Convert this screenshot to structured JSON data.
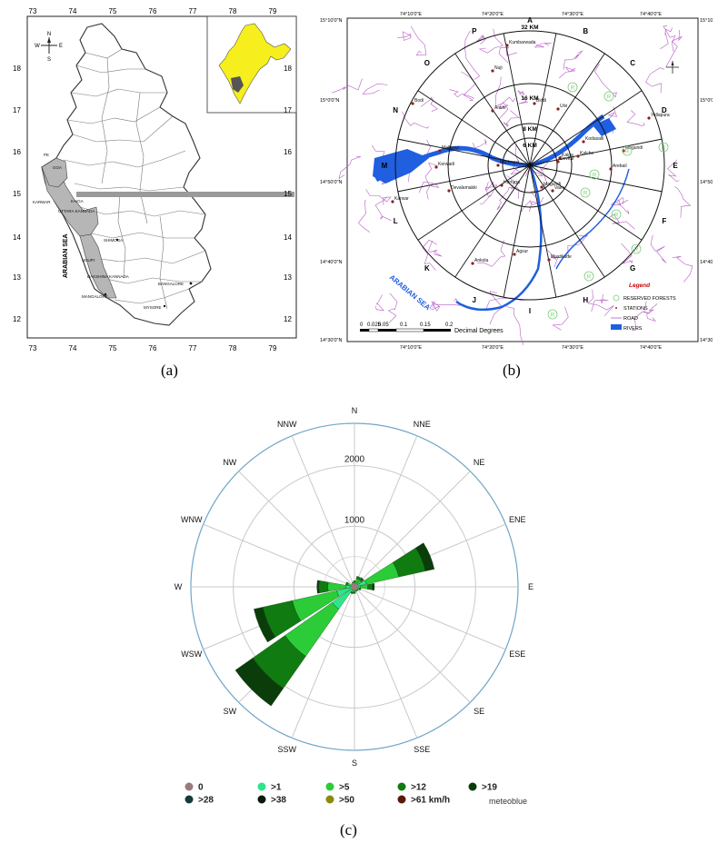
{
  "panel_a": {
    "caption": "(a)",
    "top_ticks": [
      "73",
      "74",
      "75",
      "76",
      "77",
      "78",
      "79"
    ],
    "bottom_ticks": [
      "73",
      "74",
      "75",
      "76",
      "77",
      "78",
      "79"
    ],
    "left_ticks": [
      "18",
      "17",
      "16",
      "15",
      "14",
      "13",
      "12"
    ],
    "right_ticks": [
      "18",
      "17",
      "16",
      "15",
      "14",
      "13",
      "12"
    ],
    "compass": {
      "n": "N",
      "s": "S",
      "e": "E",
      "w": "W"
    },
    "sea_label": "ARABIAN SEA",
    "places": [
      {
        "id": "goa",
        "label": "GOA"
      },
      {
        "id": "karwar",
        "label": "KARWAR"
      },
      {
        "id": "kaiga",
        "label": "KAIGA"
      },
      {
        "id": "uttara-kannada",
        "label": "UTTARA KANNADA"
      },
      {
        "id": "shimoga",
        "label": "SHIMOGA"
      },
      {
        "id": "udupi",
        "label": "UDUPI"
      },
      {
        "id": "dakshina-kannada",
        "label": "DAKSHINA KANNADA"
      },
      {
        "id": "bangalore",
        "label": "BANGALORE"
      },
      {
        "id": "mangalore",
        "label": "MANGALORE"
      },
      {
        "id": "mysore",
        "label": "MYSORE"
      },
      {
        "id": "pe",
        "label": "PE"
      }
    ],
    "colors": {
      "india": "#f6ee1d",
      "highlight": "#b6b6b6"
    }
  },
  "panel_b": {
    "caption": "(b)",
    "top_ticks": [
      "74°10'0\"E",
      "74°20'0\"E",
      "74°30'0\"E",
      "74°40'0\"E"
    ],
    "bottom_ticks": [
      "74°10'0\"E",
      "74°20'0\"E",
      "74°30'0\"E",
      "74°40'0\"E"
    ],
    "left_ticks": [
      "15°10'0\"N",
      "15°0'0\"N",
      "14°50'0\"N",
      "14°40'0\"N",
      "14°30'0\"N"
    ],
    "right_ticks": [
      "15°10'0\"N",
      "15°0'0\"N",
      "14°50'0\"N",
      "14°40'0\"N",
      "14°30'0\"N"
    ],
    "ring_labels": [
      "32 KM",
      "16 KM",
      "8 KM",
      "6 KM"
    ],
    "sectors": [
      "A",
      "B",
      "C",
      "D",
      "E",
      "F",
      "G",
      "H",
      "I",
      "J",
      "K",
      "L",
      "M",
      "N",
      "O",
      "P"
    ],
    "stations": [
      "Kumbarwada",
      "Nuji",
      "Bodi",
      "Anshi",
      "Biddi",
      "Ulvi",
      "Yellapura",
      "Kodasalli",
      "Kaiga",
      "Mallapur",
      "Kerwadi",
      "Kuchegar",
      "Devkar",
      "Kalche",
      "Magundi",
      "Arebail",
      "Karwar",
      "Devalamakki",
      "Hartuga",
      "Idagundi",
      "Vaire",
      "Agsur",
      "Mastikatte",
      "Ankola"
    ],
    "sea_label": "ARABIAN SEA",
    "scale_numbers": [
      "0",
      "0.025",
      "0.05",
      "0.1",
      "0.15",
      "0.2"
    ],
    "scale_unit": "Decimal Degrees",
    "legend_title": "Legend",
    "legend_items": [
      {
        "symbol": "forest",
        "label": "RESERVED FORESTS"
      },
      {
        "symbol": "station",
        "label": "STATIONS"
      },
      {
        "symbol": "road",
        "label": "ROAD"
      },
      {
        "symbol": "river",
        "label": "RIVERS"
      }
    ],
    "forest_marker": "R",
    "colors": {
      "river": "#1f5fe0",
      "road": "#b65cc4",
      "forest": "#7ccc7c",
      "ring": "#111111"
    }
  },
  "panel_c": {
    "caption": "(c)",
    "watermark": "meteoblue",
    "ring_values": [
      "1000",
      "2000"
    ],
    "directions": [
      "N",
      "NNE",
      "NE",
      "ENE",
      "E",
      "ESE",
      "SE",
      "SSE",
      "S",
      "SSW",
      "SW",
      "WSW",
      "W",
      "WNW",
      "NW",
      "NNW"
    ],
    "legend": [
      {
        "label": "0",
        "color": "#9a7a7a"
      },
      {
        "label": ">1",
        "color": "#2ee58a"
      },
      {
        "label": ">5",
        "color": "#2bcc37"
      },
      {
        "label": ">12",
        "color": "#107b10"
      },
      {
        "label": ">19",
        "color": "#0b3d0b"
      },
      {
        "label": ">28",
        "color": "#163a3a"
      },
      {
        "label": ">38",
        "color": "#0a1a0a"
      },
      {
        "label": ">50",
        "color": "#8a8a10"
      },
      {
        "label": ">61 km/h",
        "color": "#5a1a0a"
      }
    ]
  },
  "chart_data": {
    "type": "polar-stacked-bar",
    "directions": [
      "N",
      "NNE",
      "NE",
      "ENE",
      "E",
      "ESE",
      "SE",
      "SSE",
      "S",
      "SSW",
      "SW",
      "WSW",
      "W",
      "WNW",
      "NW",
      "NNW"
    ],
    "rmax": 2700,
    "ring_values": [
      1000,
      2000
    ],
    "speed_classes": [
      ">1",
      ">5",
      ">12",
      ">19"
    ],
    "series": [
      {
        "name": ">1",
        "values": [
          40,
          60,
          60,
          200,
          100,
          50,
          40,
          40,
          50,
          60,
          450,
          300,
          140,
          60,
          30,
          40
        ]
      },
      {
        "name": ">5",
        "values": [
          40,
          80,
          80,
          550,
          120,
          40,
          30,
          30,
          40,
          40,
          950,
          750,
          300,
          60,
          20,
          30
        ]
      },
      {
        "name": ">12",
        "values": [
          20,
          40,
          40,
          450,
          80,
          20,
          10,
          10,
          20,
          20,
          650,
          500,
          150,
          30,
          10,
          10
        ]
      },
      {
        "name": ">19",
        "values": [
          0,
          0,
          10,
          150,
          30,
          0,
          0,
          0,
          0,
          0,
          350,
          150,
          30,
          0,
          0,
          0
        ]
      }
    ]
  }
}
